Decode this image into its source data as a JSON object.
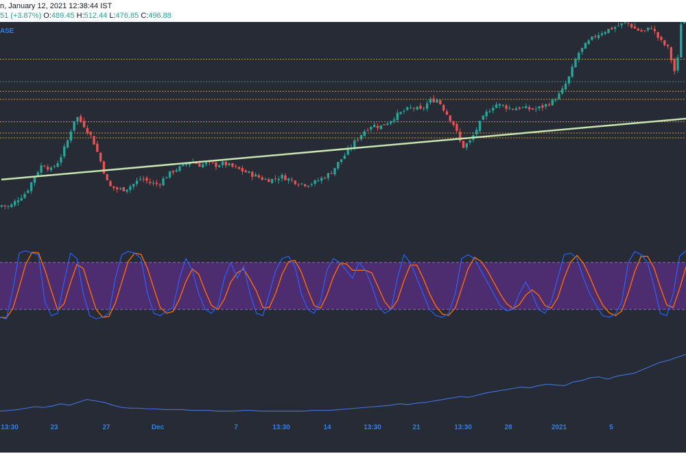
{
  "header": {
    "datetime_text": "n, January 12, 2021 12:38:44 IST",
    "change_text": "51 (+3.87%)",
    "o_label": "O:",
    "o_value": "489.45",
    "h_label": "H:",
    "h_value": "512.44",
    "l_label": "L:",
    "l_value": "476.85",
    "c_label": "C:",
    "c_value": "496.88"
  },
  "source_label": "ASE",
  "colors": {
    "background": "#262b36",
    "up": "#26a69a",
    "down": "#ef5350",
    "level_orange": "#d19a3a",
    "level_teal": "#3a8a93",
    "trendline": "#c8e6b0",
    "stoch_k": "#2962ff",
    "stoch_d": "#ff6d00",
    "stoch_band": "#7e2fb9",
    "lower_line": "#3f6fd0",
    "axis_text": "#2f80ed"
  },
  "chart_data": [
    {
      "type": "candlestick",
      "x_ticks": [
        "13:30",
        "23",
        "27",
        "Dec",
        "7",
        "13:30",
        "14",
        "13:30",
        "21",
        "13:30",
        "28",
        "2021",
        "5"
      ],
      "close_path": [
        420,
        419,
        424,
        428,
        438,
        446,
        442,
        448,
        460,
        476,
        470,
        462,
        448,
        432,
        430,
        430,
        433,
        437,
        434,
        433,
        438,
        442,
        444,
        448,
        445,
        446,
        445,
        446,
        444,
        442,
        440,
        438,
        436,
        436,
        438,
        436,
        434,
        433,
        434,
        437,
        440,
        447,
        453,
        460,
        466,
        470,
        469,
        472,
        476,
        479,
        481,
        479,
        485,
        486,
        478,
        470,
        456,
        460,
        470,
        478,
        483,
        482,
        480,
        481,
        480,
        480,
        482,
        485,
        490,
        500,
        514,
        520,
        525,
        528,
        530,
        532,
        534,
        530,
        528,
        531,
        523,
        518,
        500,
        556
      ],
      "candle_count": 208,
      "level_lines": [
        {
          "price": 511,
          "color": "orange"
        },
        {
          "price": 497,
          "color": "teal"
        },
        {
          "price": 491,
          "color": "orange"
        },
        {
          "price": 486,
          "color": "orange"
        },
        {
          "price": 472,
          "color": "orange"
        },
        {
          "price": 465,
          "color": "orange"
        },
        {
          "price": 462,
          "color": "orange"
        }
      ],
      "trendline": {
        "from": {
          "x": "13:30",
          "price": 436
        },
        "to": {
          "x": "5",
          "price": 474
        }
      },
      "ylim": [
        406,
        530
      ]
    },
    {
      "type": "line",
      "series": [
        {
          "role": "k"
        },
        {
          "role": "d"
        }
      ],
      "levels": [
        80,
        20
      ],
      "ylim": [
        0,
        100
      ],
      "k_path": [
        10,
        8,
        45,
        92,
        95,
        92,
        90,
        30,
        12,
        15,
        55,
        92,
        85,
        40,
        12,
        8,
        10,
        15,
        60,
        90,
        94,
        92,
        85,
        40,
        15,
        12,
        18,
        22,
        60,
        85,
        70,
        40,
        20,
        15,
        25,
        60,
        80,
        60,
        75,
        40,
        15,
        12,
        40,
        70,
        85,
        88,
        75,
        40,
        20,
        15,
        30,
        70,
        85,
        80,
        70,
        60,
        80,
        70,
        50,
        25,
        15,
        20,
        60,
        90,
        80,
        60,
        40,
        20,
        12,
        10,
        15,
        40,
        85,
        90,
        85,
        70,
        55,
        40,
        25,
        18,
        20,
        40,
        55,
        40,
        20,
        15,
        30,
        60,
        90,
        92,
        85,
        60,
        40,
        25,
        12,
        10,
        14,
        30,
        80,
        94,
        90,
        80,
        50,
        15,
        12,
        40,
        88,
        95
      ]
    },
    {
      "type": "line",
      "ylim": [
        0,
        100
      ],
      "values": [
        8,
        9,
        10,
        12,
        14,
        13,
        15,
        18,
        16,
        20,
        24,
        22,
        20,
        16,
        13,
        12,
        12,
        11,
        11,
        10,
        10,
        10,
        9,
        9,
        9,
        8,
        8,
        8,
        9,
        9,
        8,
        8,
        8,
        8,
        8,
        8,
        9,
        9,
        9,
        10,
        11,
        12,
        13,
        14,
        15,
        16,
        18,
        17,
        19,
        20,
        22,
        24,
        26,
        28,
        27,
        30,
        33,
        35,
        37,
        39,
        41,
        40,
        43,
        45,
        44,
        43,
        48,
        50,
        54,
        55,
        52,
        56,
        58,
        60,
        65,
        70,
        75,
        78,
        82,
        86
      ]
    }
  ]
}
